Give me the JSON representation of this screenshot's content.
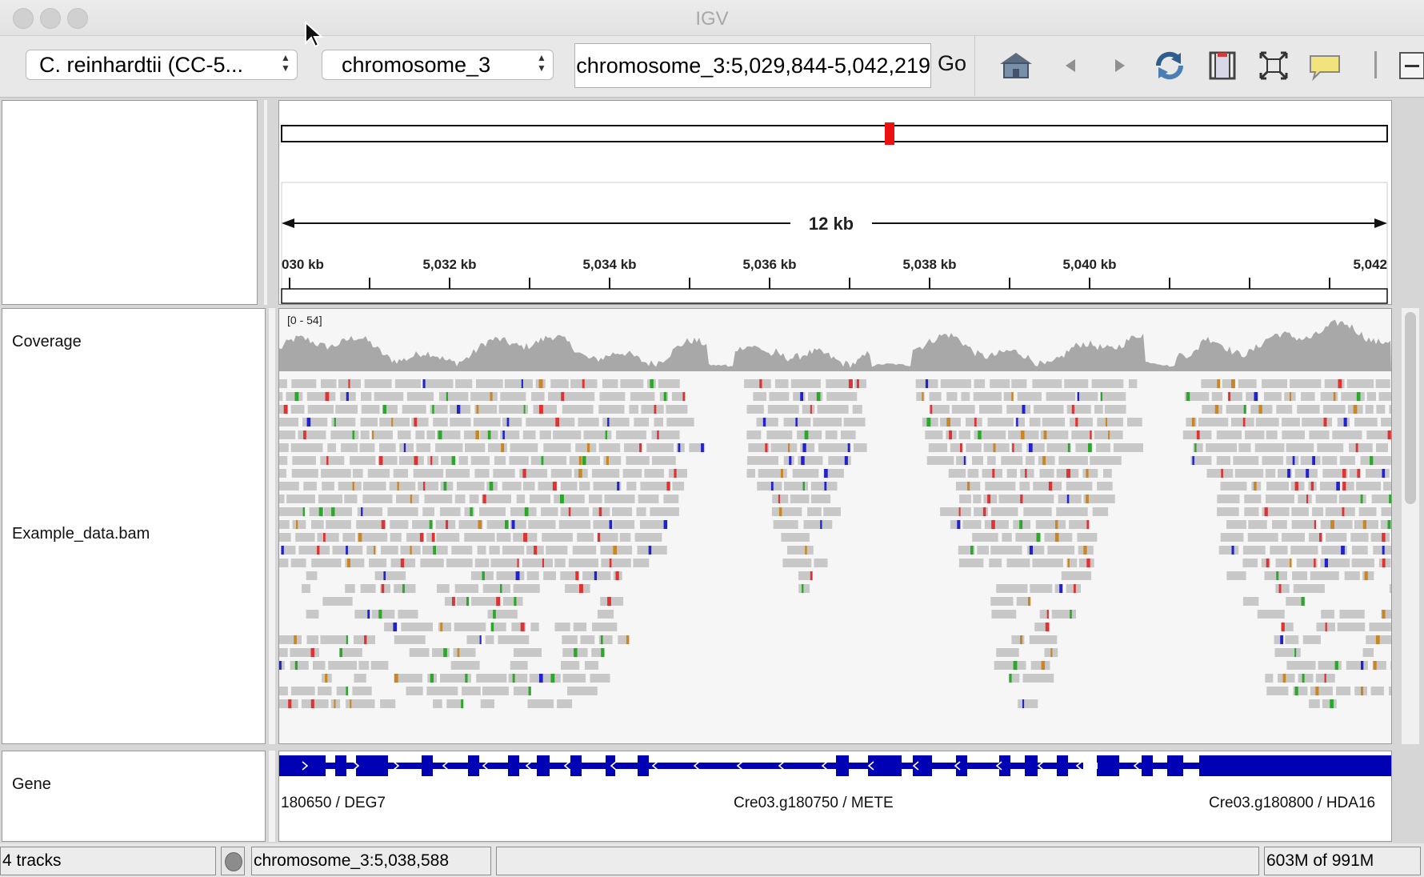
{
  "window": {
    "title": "IGV"
  },
  "toolbar": {
    "genome_value": "C. reinhardtii (CC-5...",
    "chromosome_value": "chromosome_3",
    "locus_value": "chromosome_3:5,029,844-5,042,219",
    "go_label": "Go",
    "icons": [
      "home-icon",
      "back-arrow-icon",
      "forward-arrow-icon",
      "refresh-icon",
      "region-of-interest-icon",
      "resize-to-window-icon",
      "popup-info-icon",
      "zoom-out-icon"
    ]
  },
  "ruler": {
    "span_label": "12 kb",
    "ticks": [
      "030 kb",
      "5,032 kb",
      "5,034 kb",
      "5,036 kb",
      "5,038 kb",
      "5,040 kb",
      "5,042"
    ]
  },
  "tracks": {
    "coverage": {
      "name": "Coverage",
      "range": "[0 - 54]"
    },
    "alignment": {
      "name": "Example_data.bam"
    },
    "gene": {
      "name": "Gene",
      "labels": [
        "180650 / DEG7",
        "Cre03.g180750 / METE",
        "Cre03.g180800 / HDA16"
      ]
    }
  },
  "status": {
    "track_count": "4 tracks",
    "position": "chromosome_3:5,038,588",
    "memory": "603M of 991M"
  },
  "colors": {
    "gene": "#0000b4",
    "coverage": "#a8a8a8",
    "read": "#c8c8c8",
    "mismatch_a": "#2ea62e",
    "mismatch_c": "#2222cc",
    "mismatch_g": "#c8852a",
    "mismatch_t": "#dd3333",
    "current_region": "#ee1111"
  }
}
